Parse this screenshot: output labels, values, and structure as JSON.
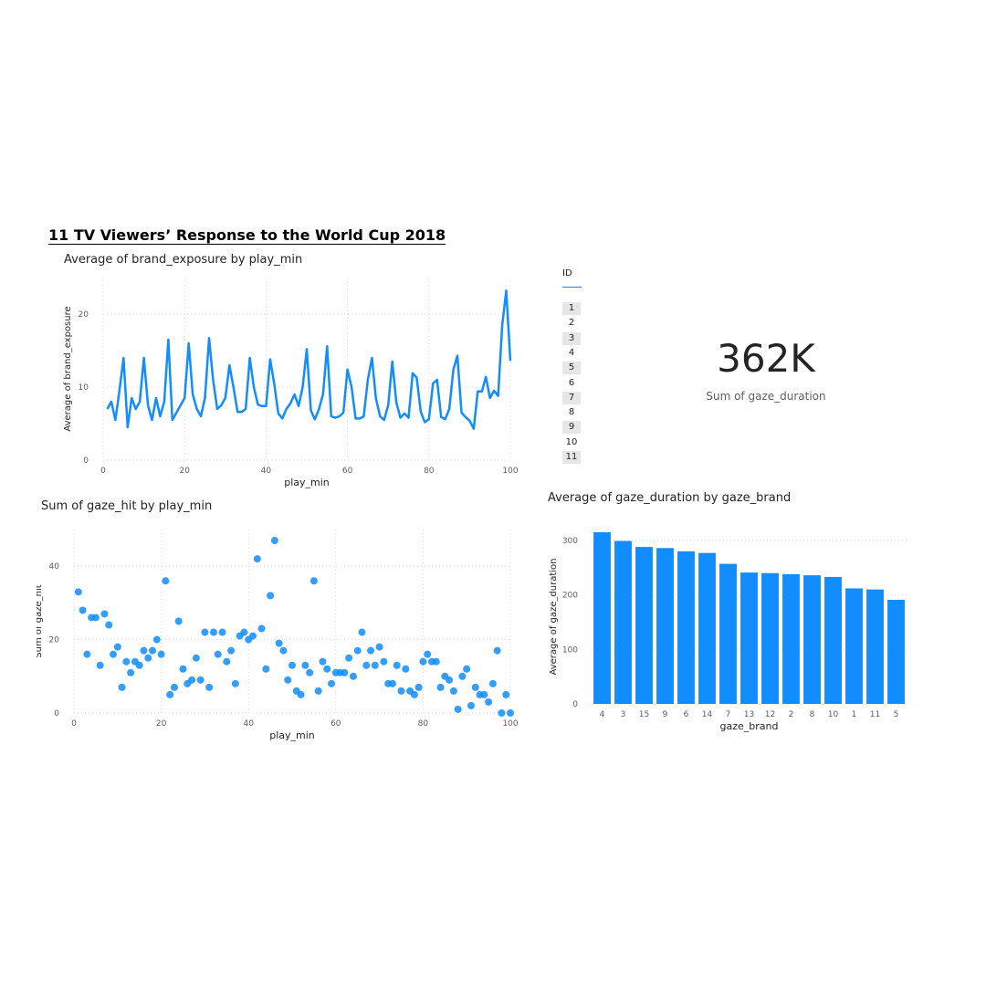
{
  "report": {
    "title": "11 TV Viewers’ Response to the World Cup 2018"
  },
  "slicer": {
    "header": "ID",
    "items": [
      "1",
      "2",
      "3",
      "4",
      "5",
      "6",
      "7",
      "8",
      "9",
      "10",
      "11"
    ],
    "shaded_items": [
      "1",
      "3",
      "5",
      "7",
      "9",
      "11"
    ]
  },
  "card": {
    "value": "362K",
    "label": "Sum of gaze_duration"
  },
  "colors": {
    "accent": "#118DFF",
    "gridline": "#d9d9d9",
    "axis_text": "#605E5C"
  },
  "chart_data": [
    {
      "type": "line",
      "title": "Average of brand_exposure by play_min",
      "xlabel": "play_min",
      "ylabel": "Average of brand_exposure",
      "xlim": [
        0,
        100
      ],
      "ylim": [
        0,
        25
      ],
      "xticks": [
        0,
        20,
        40,
        60,
        80,
        100
      ],
      "yticks": [
        0,
        10,
        20
      ],
      "grid": true,
      "x": [
        1,
        2,
        3,
        4,
        5,
        6,
        7,
        8,
        9,
        10,
        11,
        12,
        13,
        14,
        15,
        16,
        17,
        18,
        19,
        20,
        21,
        22,
        23,
        24,
        25,
        26,
        27,
        28,
        29,
        30,
        31,
        32,
        33,
        34,
        35,
        36,
        37,
        38,
        39,
        40,
        41,
        42,
        43,
        44,
        45,
        46,
        47,
        48,
        49,
        50,
        51,
        52,
        53,
        54,
        55,
        56,
        57,
        58,
        59,
        60,
        61,
        62,
        63,
        64,
        65,
        66,
        67,
        68,
        69,
        70,
        71,
        72,
        73,
        74,
        75,
        76,
        77,
        78,
        79,
        80,
        81,
        82,
        83,
        84,
        85,
        86,
        87,
        88,
        89,
        90,
        91,
        92,
        93,
        94,
        95,
        96,
        97,
        98,
        99,
        100
      ],
      "values": [
        7.0,
        8.0,
        5.5,
        9.5,
        14.0,
        4.5,
        8.5,
        7.0,
        8.0,
        14.0,
        7.5,
        5.5,
        8.5,
        6.0,
        8.0,
        16.5,
        5.5,
        6.5,
        7.5,
        8.5,
        16.0,
        9.0,
        7.0,
        6.0,
        8.5,
        16.7,
        11.0,
        7.0,
        7.5,
        8.5,
        13.0,
        10.0,
        6.6,
        6.6,
        7.0,
        14.0,
        10.0,
        7.6,
        7.4,
        7.4,
        13.8,
        10.5,
        6.4,
        5.7,
        7.0,
        7.8,
        9.0,
        7.4,
        10.0,
        15.2,
        6.8,
        5.6,
        7.0,
        9.0,
        15.6,
        6.0,
        5.8,
        6.0,
        6.5,
        12.4,
        10.0,
        5.7,
        5.7,
        6.0,
        11.0,
        14.0,
        8.4,
        6.0,
        5.5,
        7.5,
        13.5,
        7.9,
        5.8,
        6.4,
        5.8,
        11.9,
        11.3,
        6.6,
        5.2,
        5.6,
        10.5,
        11.0,
        5.9,
        5.6,
        7.0,
        12.4,
        14.3,
        6.5,
        5.9,
        5.4,
        4.3,
        9.4,
        9.4,
        11.4,
        8.5,
        9.5,
        8.8,
        18.5,
        23.2,
        13.6
      ],
      "color": "#118DFF"
    },
    {
      "type": "scatter",
      "title": "Sum of gaze_hit by play_min",
      "xlabel": "play_min",
      "ylabel": "Sum of gaze_hit",
      "xlim": [
        0,
        100
      ],
      "ylim": [
        0,
        50
      ],
      "xticks": [
        0,
        20,
        40,
        60,
        80,
        100
      ],
      "yticks": [
        0,
        20,
        40
      ],
      "grid": true,
      "x": [
        1,
        2,
        3,
        4,
        5,
        6,
        7,
        8,
        9,
        10,
        11,
        12,
        13,
        14,
        15,
        16,
        17,
        18,
        19,
        20,
        21,
        22,
        23,
        24,
        25,
        26,
        27,
        28,
        29,
        30,
        31,
        32,
        33,
        34,
        35,
        36,
        37,
        38,
        39,
        40,
        41,
        42,
        43,
        44,
        45,
        46,
        47,
        48,
        49,
        50,
        51,
        52,
        53,
        54,
        55,
        56,
        57,
        58,
        59,
        60,
        61,
        62,
        63,
        64,
        65,
        66,
        67,
        68,
        69,
        70,
        71,
        72,
        73,
        74,
        75,
        76,
        77,
        78,
        79,
        80,
        81,
        82,
        83,
        84,
        85,
        86,
        87,
        88,
        89,
        90,
        91,
        92,
        93,
        94,
        95,
        96,
        97,
        98,
        99,
        100
      ],
      "values": [
        33,
        28,
        16,
        26,
        26,
        13,
        27,
        24,
        16,
        18,
        7,
        14,
        11,
        14,
        13,
        17,
        15,
        17,
        20,
        16,
        36,
        5,
        7,
        25,
        12,
        8,
        9,
        15,
        9,
        22,
        7,
        22,
        16,
        22,
        14,
        17,
        8,
        21,
        22,
        20,
        21,
        42,
        23,
        12,
        32,
        47,
        19,
        17,
        9,
        13,
        6,
        5,
        13,
        11,
        36,
        6,
        14,
        12,
        8,
        11,
        11,
        11,
        15,
        10,
        17,
        22,
        13,
        17,
        13,
        18,
        14,
        8,
        8,
        13,
        6,
        12,
        6,
        5,
        7,
        14,
        16,
        14,
        14,
        7,
        10,
        9,
        6,
        1,
        10,
        12,
        2,
        7,
        5,
        5,
        3,
        8,
        17,
        0,
        5,
        0
      ],
      "color": "#118DFF"
    },
    {
      "type": "bar",
      "title": "Average of gaze_duration by gaze_brand",
      "xlabel": "gaze_brand",
      "ylabel": "Average of gaze_duration",
      "categories": [
        "4",
        "3",
        "15",
        "9",
        "6",
        "14",
        "7",
        "13",
        "12",
        "2",
        "8",
        "10",
        "1",
        "11",
        "5"
      ],
      "values": [
        315,
        299,
        288,
        286,
        280,
        277,
        257,
        241,
        240,
        238,
        236,
        233,
        212,
        210,
        191
      ],
      "ylim": [
        0,
        320
      ],
      "yticks": [
        0,
        100,
        200,
        300
      ],
      "grid": true,
      "color": "#118DFF"
    }
  ]
}
